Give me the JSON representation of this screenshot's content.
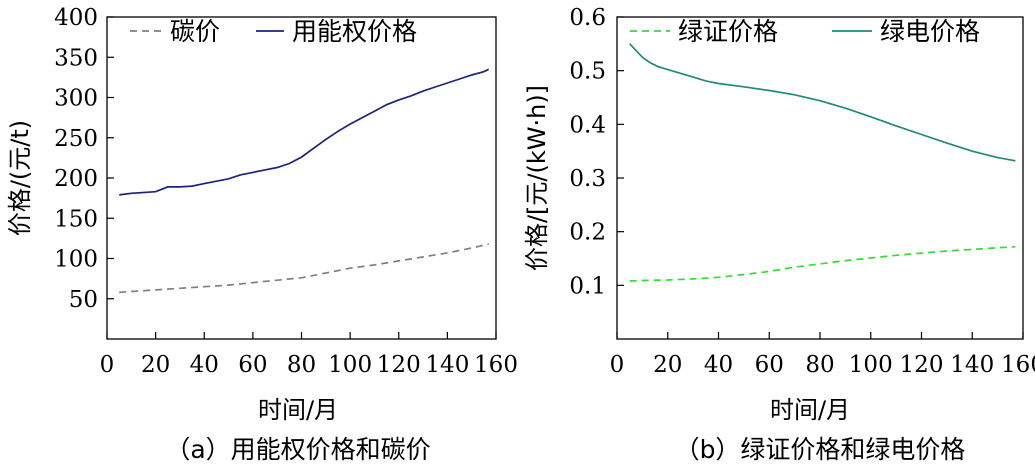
{
  "chart_data": [
    {
      "id": "a",
      "type": "line",
      "caption": "（a）用能权价格和碳价",
      "xlabel": "时间/月",
      "ylabel": "价格/(元/t)",
      "xlim": [
        0,
        160
      ],
      "ylim": [
        0,
        400
      ],
      "xticks": [
        0,
        20,
        40,
        60,
        80,
        100,
        120,
        140,
        160
      ],
      "yticks": [
        50,
        100,
        150,
        200,
        250,
        300,
        350,
        400
      ],
      "legend_position": "top",
      "series": [
        {
          "name": "碳价",
          "color": "#808080",
          "dash": "dashed",
          "x": [
            5,
            10,
            20,
            30,
            40,
            50,
            60,
            70,
            80,
            90,
            100,
            110,
            120,
            130,
            140,
            150,
            157
          ],
          "values": [
            58,
            59,
            61,
            63,
            65,
            67,
            70,
            73,
            76,
            82,
            88,
            92,
            97,
            102,
            107,
            113,
            118
          ]
        },
        {
          "name": "用能权价格",
          "color": "#1a237e",
          "dash": "solid",
          "x": [
            5,
            10,
            20,
            25,
            30,
            35,
            40,
            45,
            50,
            55,
            60,
            65,
            70,
            75,
            80,
            85,
            90,
            95,
            100,
            105,
            110,
            115,
            120,
            125,
            130,
            135,
            140,
            145,
            150,
            155,
            157
          ],
          "values": [
            179,
            181,
            183,
            189,
            189,
            190,
            193,
            196,
            199,
            204,
            207,
            210,
            213,
            218,
            226,
            237,
            248,
            258,
            267,
            275,
            283,
            291,
            297,
            302,
            308,
            313,
            318,
            323,
            328,
            332,
            335
          ]
        }
      ]
    },
    {
      "id": "b",
      "type": "line",
      "caption": "（b）绿证价格和绿电价格",
      "xlabel": "时间/月",
      "ylabel": "价格/[元/(kW·h)]",
      "xlim": [
        0,
        160
      ],
      "ylim": [
        0,
        0.6
      ],
      "xticks": [
        0,
        20,
        40,
        60,
        80,
        100,
        120,
        140,
        160
      ],
      "yticks": [
        0.1,
        0.2,
        0.3,
        0.4,
        0.5,
        0.6
      ],
      "legend_position": "top",
      "series": [
        {
          "name": "绿证价格",
          "color": "#33dd33",
          "dash": "dashed",
          "x": [
            5,
            10,
            20,
            30,
            40,
            50,
            60,
            70,
            80,
            90,
            100,
            110,
            120,
            130,
            140,
            150,
            157
          ],
          "values": [
            0.108,
            0.109,
            0.11,
            0.112,
            0.115,
            0.12,
            0.126,
            0.134,
            0.14,
            0.146,
            0.151,
            0.156,
            0.16,
            0.164,
            0.167,
            0.17,
            0.172
          ]
        },
        {
          "name": "绿电价格",
          "color": "#1f8a7e",
          "dash": "solid",
          "x": [
            5,
            7,
            10,
            13,
            16,
            20,
            25,
            30,
            35,
            40,
            50,
            60,
            70,
            80,
            90,
            100,
            110,
            120,
            130,
            140,
            150,
            157
          ],
          "values": [
            0.55,
            0.54,
            0.525,
            0.515,
            0.508,
            0.502,
            0.495,
            0.488,
            0.481,
            0.476,
            0.47,
            0.463,
            0.455,
            0.444,
            0.43,
            0.414,
            0.397,
            0.381,
            0.365,
            0.35,
            0.338,
            0.332
          ]
        }
      ]
    }
  ]
}
